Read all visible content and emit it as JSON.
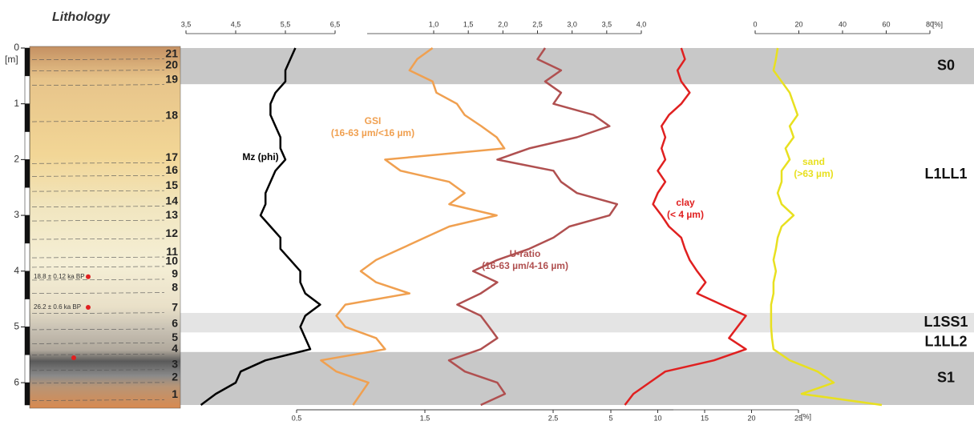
{
  "title": "Lithology",
  "depth_axis": {
    "label": "[m]",
    "ylim": [
      0,
      6.4
    ],
    "yticks": [
      0,
      1,
      2,
      3,
      4,
      5,
      6
    ]
  },
  "layers": [
    {
      "label": "21",
      "depth": 0.11
    },
    {
      "label": "20",
      "depth": 0.31
    },
    {
      "label": "19",
      "depth": 0.57
    },
    {
      "label": "18",
      "depth": 1.22
    },
    {
      "label": "17",
      "depth": 1.97
    },
    {
      "label": "16",
      "depth": 2.2
    },
    {
      "label": "15",
      "depth": 2.47
    },
    {
      "label": "14",
      "depth": 2.75
    },
    {
      "label": "13",
      "depth": 3.0
    },
    {
      "label": "12",
      "depth": 3.33
    },
    {
      "label": "11",
      "depth": 3.66
    },
    {
      "label": "10",
      "depth": 3.83
    },
    {
      "label": "9",
      "depth": 4.06
    },
    {
      "label": "8",
      "depth": 4.3
    },
    {
      "label": "7",
      "depth": 4.66
    },
    {
      "label": "6",
      "depth": 4.95
    },
    {
      "label": "5",
      "depth": 5.2
    },
    {
      "label": "4",
      "depth": 5.4
    },
    {
      "label": "3",
      "depth": 5.68
    },
    {
      "label": "2",
      "depth": 5.91
    },
    {
      "label": "1",
      "depth": 6.22
    }
  ],
  "dates": [
    {
      "label": "18.8 ± 0.12 ka BP",
      "depth": 4.1
    },
    {
      "label": "26.2 ± 0.6 ka BP",
      "depth": 4.65
    }
  ],
  "zones": [
    {
      "label": "S0",
      "top": 0,
      "bottom": 0.65,
      "color": "#c8c8c8"
    },
    {
      "label": "L1LL1",
      "top": 0.65,
      "bottom": 4.75,
      "color": "#ffffff"
    },
    {
      "label": "L1SS1",
      "top": 4.75,
      "bottom": 5.1,
      "color": "#e4e4e4"
    },
    {
      "label": "L1LL2",
      "top": 5.1,
      "bottom": 5.45,
      "color": "#ffffff"
    },
    {
      "label": "S1",
      "top": 5.45,
      "bottom": 6.4,
      "color": "#c8c8c8"
    }
  ],
  "chart_data": [
    {
      "type": "line",
      "axis_position": "top",
      "xlim": [
        3.5,
        6.5
      ],
      "xticks": [
        {
          "value": 3.5,
          "label": "3,5"
        },
        {
          "value": 4.5,
          "label": "4,5"
        },
        {
          "value": 5.5,
          "label": "5,5"
        },
        {
          "value": 6.5,
          "label": "6,5"
        }
      ],
      "depth": [
        0,
        0.2,
        0.4,
        0.6,
        0.8,
        1.0,
        1.2,
        1.4,
        1.6,
        1.8,
        2.0,
        2.2,
        2.4,
        2.6,
        2.8,
        3.0,
        3.2,
        3.4,
        3.6,
        3.8,
        4.0,
        4.2,
        4.4,
        4.6,
        4.8,
        5.0,
        5.2,
        5.4,
        5.6,
        5.8,
        6.0,
        6.2,
        6.4
      ],
      "series": [
        {
          "name": "Mz (phi)",
          "color": "#000000",
          "values": [
            5.7,
            5.6,
            5.5,
            5.5,
            5.3,
            5.2,
            5.2,
            5.3,
            5.4,
            5.4,
            5.5,
            5.3,
            5.2,
            5.1,
            5.1,
            5.0,
            5.2,
            5.4,
            5.4,
            5.6,
            5.8,
            5.8,
            5.9,
            6.2,
            5.9,
            5.8,
            5.9,
            6.0,
            5.1,
            4.6,
            4.5,
            4.1,
            3.8
          ]
        }
      ]
    },
    {
      "type": "line",
      "axis_position": "bottom",
      "xlim": [
        0.5,
        2.5
      ],
      "xticks": [
        {
          "value": 0.5,
          "label": "0,5"
        },
        {
          "value": 1.5,
          "label": "1,5"
        },
        {
          "value": 2.5,
          "label": "2,5"
        }
      ],
      "depth": [
        0,
        0.2,
        0.4,
        0.6,
        0.8,
        1.0,
        1.2,
        1.4,
        1.6,
        1.8,
        2.0,
        2.2,
        2.4,
        2.6,
        2.8,
        3.0,
        3.2,
        3.4,
        3.6,
        3.8,
        4.0,
        4.2,
        4.4,
        4.6,
        4.8,
        5.0,
        5.2,
        5.4,
        5.6,
        5.8,
        6.0,
        6.2,
        6.4
      ],
      "series": [
        {
          "name": "GSI",
          "annotation": "(16-63 µm/<16 µm)",
          "color": "#f0a050",
          "values": [
            1.56,
            1.44,
            1.38,
            1.56,
            1.59,
            1.75,
            1.81,
            1.94,
            2.06,
            2.12,
            1.19,
            1.31,
            1.69,
            1.81,
            1.69,
            2.06,
            1.69,
            1.5,
            1.31,
            1.12,
            1.0,
            1.12,
            1.38,
            0.88,
            0.81,
            0.88,
            1.12,
            1.19,
            0.69,
            0.81,
            1.06,
            1.0,
            0.94
          ]
        }
      ]
    },
    {
      "type": "line",
      "axis_position": "top",
      "xlim": [
        1.0,
        4.0
      ],
      "xticks": [
        {
          "value": 1.0,
          "label": "1,0"
        },
        {
          "value": 1.5,
          "label": "1,5"
        },
        {
          "value": 2.0,
          "label": "2,0"
        },
        {
          "value": 2.5,
          "label": "2,5"
        },
        {
          "value": 3.0,
          "label": "3,0"
        },
        {
          "value": 3.5,
          "label": "3,5"
        },
        {
          "value": 4.0,
          "label": "4,0"
        }
      ],
      "depth": [
        0,
        0.2,
        0.4,
        0.6,
        0.8,
        1.0,
        1.2,
        1.4,
        1.6,
        1.8,
        2.0,
        2.2,
        2.4,
        2.6,
        2.8,
        3.0,
        3.2,
        3.4,
        3.6,
        3.8,
        4.0,
        4.2,
        4.4,
        4.6,
        4.8,
        5.0,
        5.2,
        5.4,
        5.6,
        5.8,
        6.0,
        6.2,
        6.4
      ],
      "series": [
        {
          "name": "U-ratio",
          "annotation": "(16-63 µm/4-16 µm)",
          "color": "#b05050",
          "values": [
            2.61,
            2.5,
            2.84,
            2.61,
            2.84,
            2.73,
            3.31,
            3.54,
            3.07,
            2.38,
            1.92,
            2.73,
            2.84,
            3.07,
            3.65,
            3.54,
            2.96,
            2.73,
            2.38,
            1.92,
            1.57,
            1.92,
            1.68,
            1.34,
            1.68,
            1.8,
            1.92,
            1.68,
            1.22,
            1.45,
            1.92,
            2.03,
            1.68
          ]
        }
      ]
    },
    {
      "type": "line",
      "axis_position": "bottom",
      "xlim": [
        5,
        25
      ],
      "unit": "[%]",
      "xticks": [
        5,
        10,
        15,
        20,
        25
      ],
      "depth": [
        0,
        0.2,
        0.4,
        0.6,
        0.8,
        1.0,
        1.2,
        1.4,
        1.6,
        1.8,
        2.0,
        2.2,
        2.4,
        2.6,
        2.8,
        3.0,
        3.2,
        3.4,
        3.6,
        3.8,
        4.0,
        4.2,
        4.4,
        4.6,
        4.8,
        5.0,
        5.2,
        5.4,
        5.6,
        5.8,
        6.0,
        6.2,
        6.4
      ],
      "series": [
        {
          "name": "clay",
          "annotation": "(< 4  µm)",
          "color": "#e02020",
          "values": [
            12.5,
            12.9,
            12.1,
            12.5,
            13.4,
            12.5,
            11.2,
            10.4,
            10.8,
            10.4,
            10.8,
            10.0,
            10.8,
            10.0,
            9.5,
            10.4,
            11.2,
            12.5,
            12.9,
            13.4,
            14.2,
            15.1,
            14.2,
            16.8,
            19.4,
            18.5,
            17.6,
            19.4,
            16.0,
            10.8,
            9.1,
            7.4,
            6.5
          ]
        }
      ]
    },
    {
      "type": "line",
      "axis_position": "top",
      "xlim": [
        0,
        80
      ],
      "unit": "[%]",
      "xticks": [
        0,
        20,
        40,
        60,
        80
      ],
      "depth": [
        0,
        0.2,
        0.4,
        0.6,
        0.8,
        1.0,
        1.2,
        1.4,
        1.6,
        1.8,
        2.0,
        2.2,
        2.4,
        2.6,
        2.8,
        3.0,
        3.2,
        3.4,
        3.6,
        3.8,
        4.0,
        4.2,
        4.4,
        4.6,
        4.8,
        5.0,
        5.2,
        5.4,
        5.6,
        5.8,
        6.0,
        6.2,
        6.4
      ],
      "series": [
        {
          "name": "sand",
          "annotation": "(>63 µm)",
          "color": "#e8e020",
          "values": [
            10.3,
            9.5,
            8.4,
            12.1,
            15.8,
            17.6,
            19.4,
            15.8,
            17.6,
            13.9,
            15.8,
            12.1,
            12.1,
            10.3,
            12.1,
            17.6,
            12.1,
            10.3,
            9.5,
            8.4,
            9.5,
            8.4,
            8.4,
            7.3,
            7.3,
            7.3,
            7.7,
            8.4,
            15.8,
            28.6,
            36.0,
            21.3,
            58.0
          ]
        }
      ]
    }
  ]
}
